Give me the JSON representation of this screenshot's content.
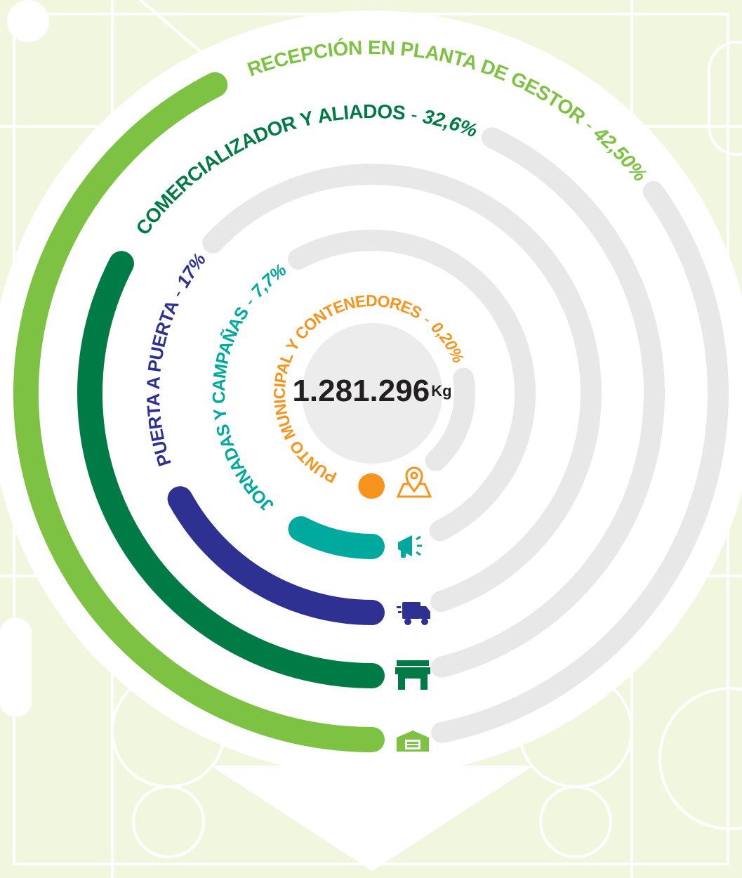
{
  "chart_data": {
    "type": "radial_bar",
    "categories": [
      "RECEPCIÓN EN PLANTA DE GESTOR",
      "COMERCIALIZADOR Y ALIADOS",
      "PUERTA A PUERTA",
      "JORNADAS Y CAMPAÑAS",
      "PUNTO MUNICIPAL Y CONTENEDORES"
    ],
    "values": [
      42.5,
      32.6,
      17,
      7.7,
      0.2
    ],
    "value_labels": [
      "42,50%",
      "32,6%",
      "17%",
      "7,7%",
      "0,20%"
    ],
    "colors": [
      "#7dc242",
      "#007b45",
      "#2e3192",
      "#00a99d",
      "#f7941d"
    ],
    "separator": "-",
    "total": {
      "value": 1281296,
      "label": "1.281.296",
      "unit": "Kg"
    }
  }
}
